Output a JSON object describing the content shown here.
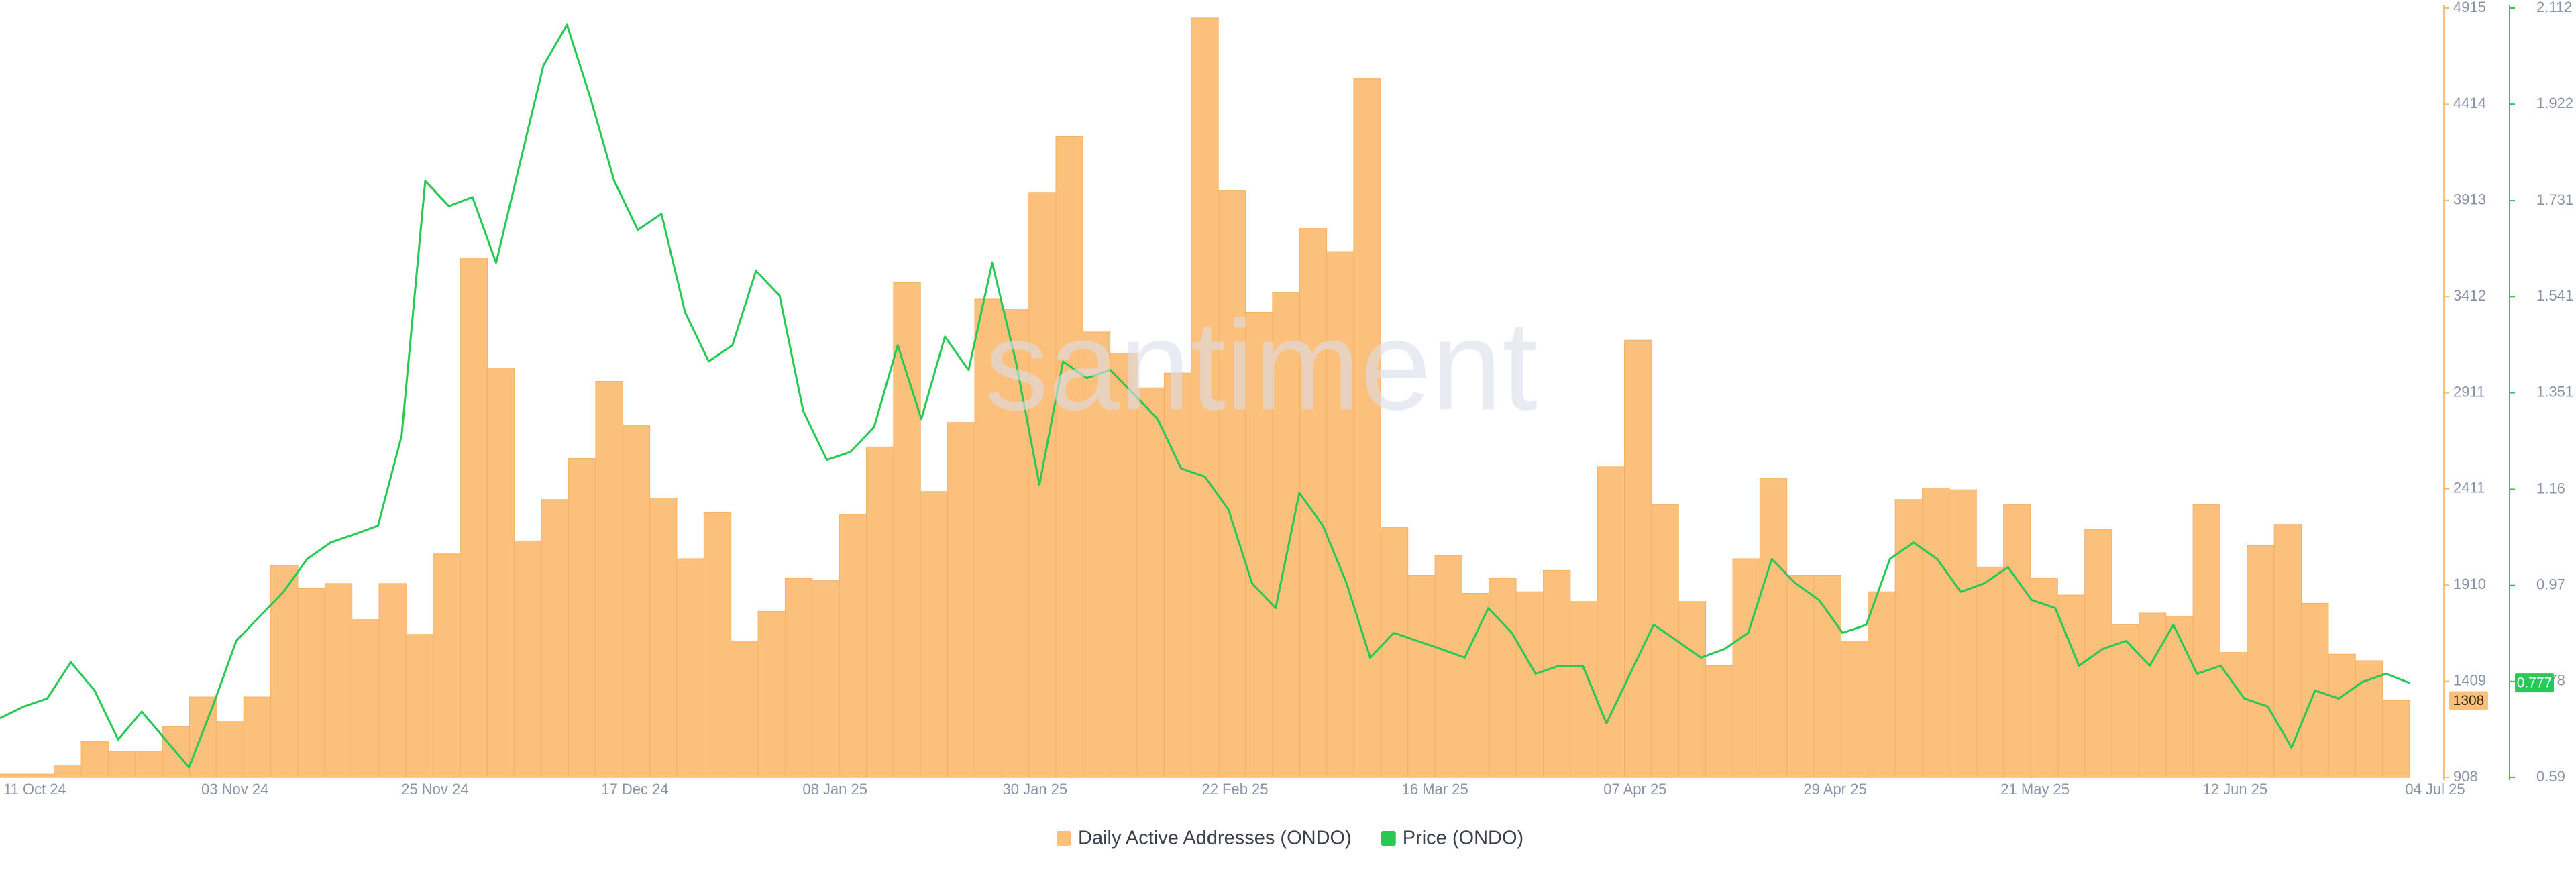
{
  "chart_data": {
    "type": "bar",
    "watermark": "santiment",
    "x_labels": [
      "11 Oct 24",
      "03 Nov 24",
      "25 Nov 24",
      "17 Dec 24",
      "08 Jan 25",
      "30 Jan 25",
      "22 Feb 25",
      "16 Mar 25",
      "07 Apr 25",
      "29 Apr 25",
      "21 May 25",
      "12 Jun 25",
      "04 Jul 25"
    ],
    "ylim": [
      908,
      4915
    ],
    "yticks": [
      908,
      1409,
      1910,
      2411,
      2911,
      3412,
      3913,
      4414,
      4915
    ],
    "y2lim": [
      0.59,
      2.112
    ],
    "y2ticks": [
      0.59,
      0.78,
      0.97,
      1.16,
      1.351,
      1.541,
      1.731,
      1.922,
      2.112
    ],
    "grid": false,
    "legend": "bottom",
    "series": [
      {
        "name": "Daily Active Addresses (ONDO)",
        "type": "bar",
        "color": "#fbc07c",
        "values": [
          925,
          925,
          968,
          1096,
          1045,
          1045,
          1173,
          1327,
          1199,
          1327,
          2012,
          1892,
          1918,
          1730,
          1918,
          1653,
          2072,
          3613,
          3040,
          2140,
          2355,
          2569,
          2971,
          2740,
          2363,
          2047,
          2286,
          1619,
          1773,
          1944,
          1935,
          2278,
          2629,
          3485,
          2397,
          2757,
          3399,
          3348,
          3955,
          4246,
          3228,
          3117,
          2937,
          3014,
          4863,
          3964,
          3331,
          3433,
          3767,
          3647,
          4546,
          2209,
          1961,
          2064,
          1867,
          1944,
          1875,
          1986,
          1824,
          2526,
          3185,
          2329,
          1824,
          1490,
          2047,
          2466,
          1961,
          1961,
          1619,
          1875,
          2355,
          2415,
          2406,
          2004,
          2329,
          1944,
          1858,
          2200,
          1704,
          1764,
          1747,
          2329,
          1559,
          2115,
          2226,
          1815,
          1550,
          1516,
          1308
        ]
      },
      {
        "name": "Price (ONDO)",
        "type": "line",
        "axis": "y2",
        "color": "#26c953",
        "values": [
          0.707,
          0.73,
          0.746,
          0.818,
          0.762,
          0.665,
          0.72,
          0.665,
          0.61,
          0.73,
          0.86,
          0.909,
          0.957,
          1.022,
          1.055,
          1.071,
          1.088,
          1.266,
          1.77,
          1.72,
          1.738,
          1.608,
          1.803,
          1.998,
          2.079,
          1.933,
          1.77,
          1.673,
          1.705,
          1.51,
          1.413,
          1.445,
          1.592,
          1.543,
          1.315,
          1.218,
          1.234,
          1.283,
          1.445,
          1.299,
          1.462,
          1.396,
          1.608,
          1.413,
          1.169,
          1.413,
          1.38,
          1.396,
          1.348,
          1.299,
          1.201,
          1.185,
          1.12,
          0.974,
          0.925,
          1.153,
          1.088,
          0.974,
          0.827,
          0.876,
          0.86,
          0.844,
          0.827,
          0.925,
          0.876,
          0.795,
          0.811,
          0.811,
          0.697,
          0.795,
          0.892,
          0.86,
          0.827,
          0.844,
          0.876,
          1.022,
          0.974,
          0.941,
          0.876,
          0.892,
          1.022,
          1.055,
          1.022,
          0.957,
          0.974,
          1.006,
          0.941,
          0.925,
          0.811,
          0.844,
          0.86,
          0.811,
          0.892,
          0.795,
          0.811,
          0.746,
          0.73,
          0.649,
          0.762,
          0.746,
          0.779,
          0.795,
          0.777
        ]
      }
    ]
  }
}
